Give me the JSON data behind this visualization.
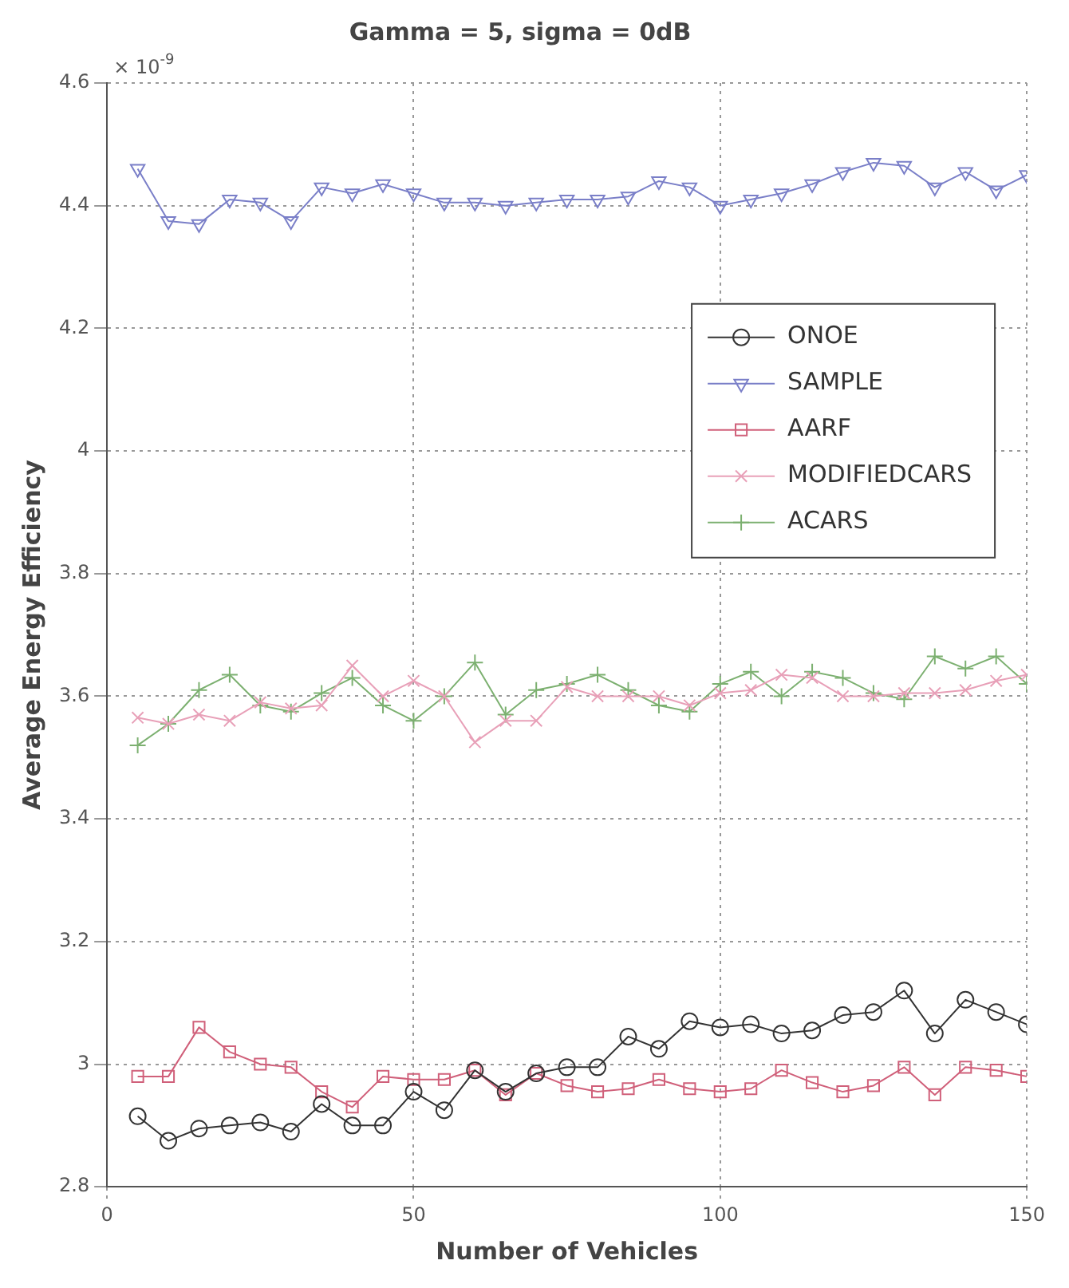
{
  "chart_data": {
    "type": "line",
    "title": "Gamma = 5, sigma = 0dB",
    "xlabel": "Number of Vehicles",
    "ylabel": "Average Energy Efficiency",
    "annotations": [
      "× 10$^{-9}$"
    ],
    "x": [
      5,
      10,
      15,
      20,
      25,
      30,
      35,
      40,
      45,
      50,
      55,
      60,
      65,
      70,
      75,
      80,
      85,
      90,
      95,
      100,
      105,
      110,
      115,
      120,
      125,
      130,
      135,
      140,
      145,
      150
    ],
    "series": [
      {
        "name": "ONOE",
        "color": "#333333",
        "marker": "circle",
        "values": [
          2.915,
          2.875,
          2.895,
          2.9,
          2.905,
          2.89,
          2.935,
          2.9,
          2.9,
          2.955,
          2.925,
          2.99,
          2.955,
          2.985,
          2.995,
          2.995,
          3.045,
          3.025,
          3.07,
          3.06,
          3.065,
          3.05,
          3.055,
          3.08,
          3.085,
          3.12,
          3.05,
          3.105,
          3.085,
          3.065
        ]
      },
      {
        "name": "SAMPLE",
        "color": "#7a7fc8",
        "marker": "triangle",
        "values": [
          4.46,
          4.375,
          4.37,
          4.41,
          4.405,
          4.375,
          4.43,
          4.42,
          4.435,
          4.42,
          4.405,
          4.405,
          4.4,
          4.405,
          4.41,
          4.41,
          4.415,
          4.44,
          4.43,
          4.4,
          4.41,
          4.42,
          4.435,
          4.455,
          4.47,
          4.465,
          4.43,
          4.455,
          4.425,
          4.45
        ]
      },
      {
        "name": "AARF",
        "color": "#d0607a",
        "marker": "square",
        "values": [
          2.98,
          2.98,
          3.06,
          3.02,
          3.0,
          2.995,
          2.955,
          2.93,
          2.98,
          2.975,
          2.975,
          2.99,
          2.95,
          2.985,
          2.965,
          2.955,
          2.96,
          2.975,
          2.96,
          2.955,
          2.96,
          2.99,
          2.97,
          2.955,
          2.965,
          2.995,
          2.95,
          2.995,
          2.99,
          2.98
        ]
      },
      {
        "name": "MODIFIEDCARS",
        "color": "#e8a0b8",
        "marker": "cross",
        "values": [
          3.565,
          3.555,
          3.57,
          3.56,
          3.59,
          3.58,
          3.585,
          3.65,
          3.6,
          3.625,
          3.6,
          3.525,
          3.56,
          3.56,
          3.615,
          3.6,
          3.6,
          3.6,
          3.585,
          3.605,
          3.61,
          3.635,
          3.63,
          3.6,
          3.6,
          3.605,
          3.605,
          3.61,
          3.625,
          3.635
        ]
      },
      {
        "name": "ACARS",
        "color": "#7cb070",
        "marker": "cross",
        "values": [
          3.52,
          3.555,
          3.61,
          3.635,
          3.585,
          3.575,
          3.605,
          3.63,
          3.585,
          3.56,
          3.6,
          3.655,
          3.57,
          3.61,
          3.62,
          3.635,
          3.61,
          3.585,
          3.575,
          3.62,
          3.64,
          3.6,
          3.64,
          3.63,
          3.605,
          3.595,
          3.665,
          3.645,
          3.665,
          3.62
        ]
      }
    ],
    "xlim": [
      0,
      150
    ],
    "xticks": [
      0,
      50,
      100,
      150
    ],
    "ylim": [
      2.8,
      4.6
    ],
    "yticks": [
      2.8,
      3,
      3.2,
      3.4,
      3.6,
      3.8,
      4,
      4.2,
      4.4,
      4.6
    ],
    "grid": true,
    "legend": "top right",
    "line_style": "solid"
  }
}
